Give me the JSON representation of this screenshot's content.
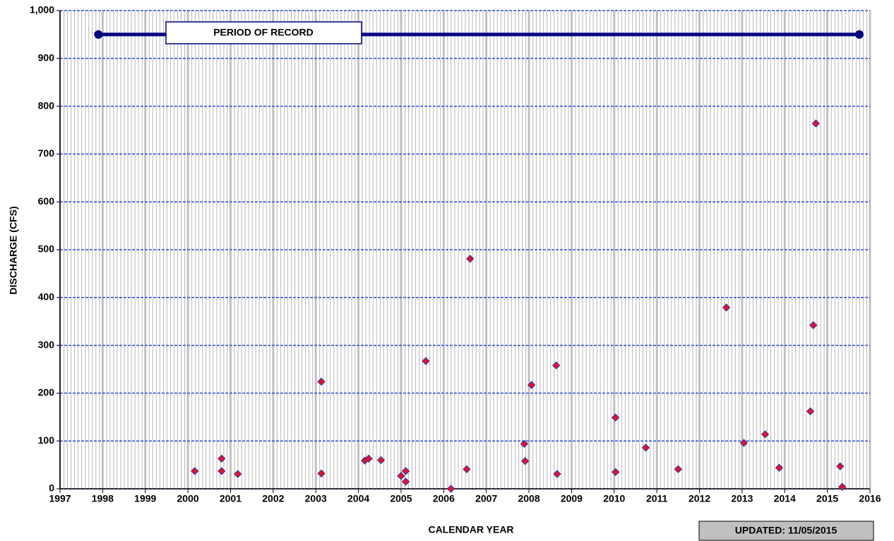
{
  "chart_data": {
    "type": "scatter",
    "x_label": "CALENDAR YEAR",
    "y_label": "DISCHARGE  (CFS)",
    "x": [
      2000.16,
      2000.79,
      2000.79,
      2001.17,
      2003.13,
      2003.13,
      2004.15,
      2004.24,
      2004.53,
      2005.0,
      2005.11,
      2005.11,
      2005.58,
      2006.17,
      2006.54,
      2006.62,
      2007.89,
      2007.91,
      2008.06,
      2008.64,
      2008.66,
      2010.03,
      2010.03,
      2010.74,
      2011.5,
      2012.63,
      2013.04,
      2013.54,
      2013.87,
      2014.6,
      2014.67,
      2014.73,
      2015.3,
      2015.35
    ],
    "values": [
      37,
      63,
      37,
      31,
      224,
      32,
      59,
      63,
      60,
      27,
      37,
      15,
      267,
      0,
      41,
      481,
      94,
      58,
      217,
      258,
      31,
      149,
      35,
      86,
      41,
      379,
      96,
      114,
      44,
      162,
      342,
      764,
      47,
      4
    ],
    "color": "#e8102a",
    "edge_color": "#2b3aa0",
    "xlim": [
      1997,
      2016
    ],
    "xticks": [
      1997,
      1998,
      1999,
      2000,
      2001,
      2002,
      2003,
      2004,
      2005,
      2006,
      2007,
      2008,
      2009,
      2010,
      2011,
      2012,
      2013,
      2014,
      2015,
      2016
    ],
    "ylim": [
      0,
      1000
    ],
    "yticks": [
      0,
      100,
      200,
      300,
      400,
      500,
      600,
      700,
      800,
      900,
      {
        "value": 1000,
        "label": "1,000"
      }
    ],
    "grid": true,
    "period_of_record": {
      "label": "PERIOD OF RECORD",
      "x": [
        1997.9,
        2015.75
      ],
      "y": 950,
      "color": "#000080"
    },
    "updated": "UPDATED:  11/05/2015"
  }
}
